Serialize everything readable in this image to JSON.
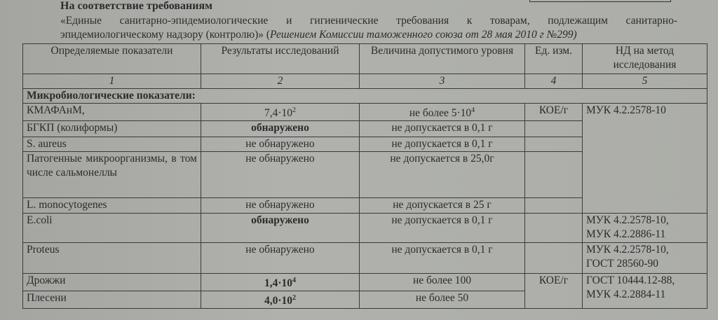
{
  "header": {
    "title": "На соответствие требованиям",
    "line1": "«Единые санитарно-эпидемиологические и гигиенические требования к товарам, подлежащим санитарно-",
    "line2_plain": "эпидемиологическому надзору (контролю)» (",
    "line2_italic": "Решением Комиссии таможенного союза от 28 мая 2010 г №299)"
  },
  "table": {
    "columns": [
      "Определяемые показатели",
      "Результаты исследований",
      "Величина допустимого уровня",
      "Ед. изм.",
      "НД на метод исследования"
    ],
    "column_numbers": [
      "1",
      "2",
      "3",
      "4",
      "5"
    ],
    "section": "Микробиологические показатели:",
    "rows": [
      {
        "name": "КМАФАнМ,",
        "result_base": "7,4·10",
        "result_exp": "2",
        "limit_base": "не более 5·10",
        "limit_exp": "4",
        "unit": "КОЕ/г",
        "method": "МУК 4.2.2578-10"
      },
      {
        "name": "БГКП (колиформы)",
        "result": "обнаружено",
        "limit": "не допускается в 0,1 г"
      },
      {
        "name": "S. aureus",
        "result": "не обнаружено",
        "limit": "не допускается в 0,1 г"
      },
      {
        "name": "Патогенные микроорганизмы, в том числе сальмонеллы",
        "result": "не обнаружено",
        "limit": "не допускается в 25,0г"
      },
      {
        "name": "L. monocytogenes",
        "result": "не обнаружено",
        "limit": "не допускается в 25 г"
      },
      {
        "name": "E.coli",
        "result": "обнаружено",
        "limit": "не допускается в 0,1 г",
        "method_1": "МУК 4.2.2578-10,",
        "method_2": "МУК 4.2.2886-11"
      },
      {
        "name": "Proteus",
        "result": "не обнаружено",
        "limit": "не допускается в 0,1 г",
        "method_1": "МУК 4.2.2578-10,",
        "method_2": "ГОСТ 28560-90"
      },
      {
        "name": "Дрожжи",
        "result_base": "1,4·10",
        "result_exp": "4",
        "limit": "не более 100",
        "unit": "КОЕ/г",
        "method_1": "ГОСТ 10444.12-88,",
        "method_2": "МУК 4.2.2884-11"
      },
      {
        "name": "Плесени",
        "result_base": "4,0·10",
        "result_exp": "2",
        "limit": "не более 50"
      }
    ]
  }
}
